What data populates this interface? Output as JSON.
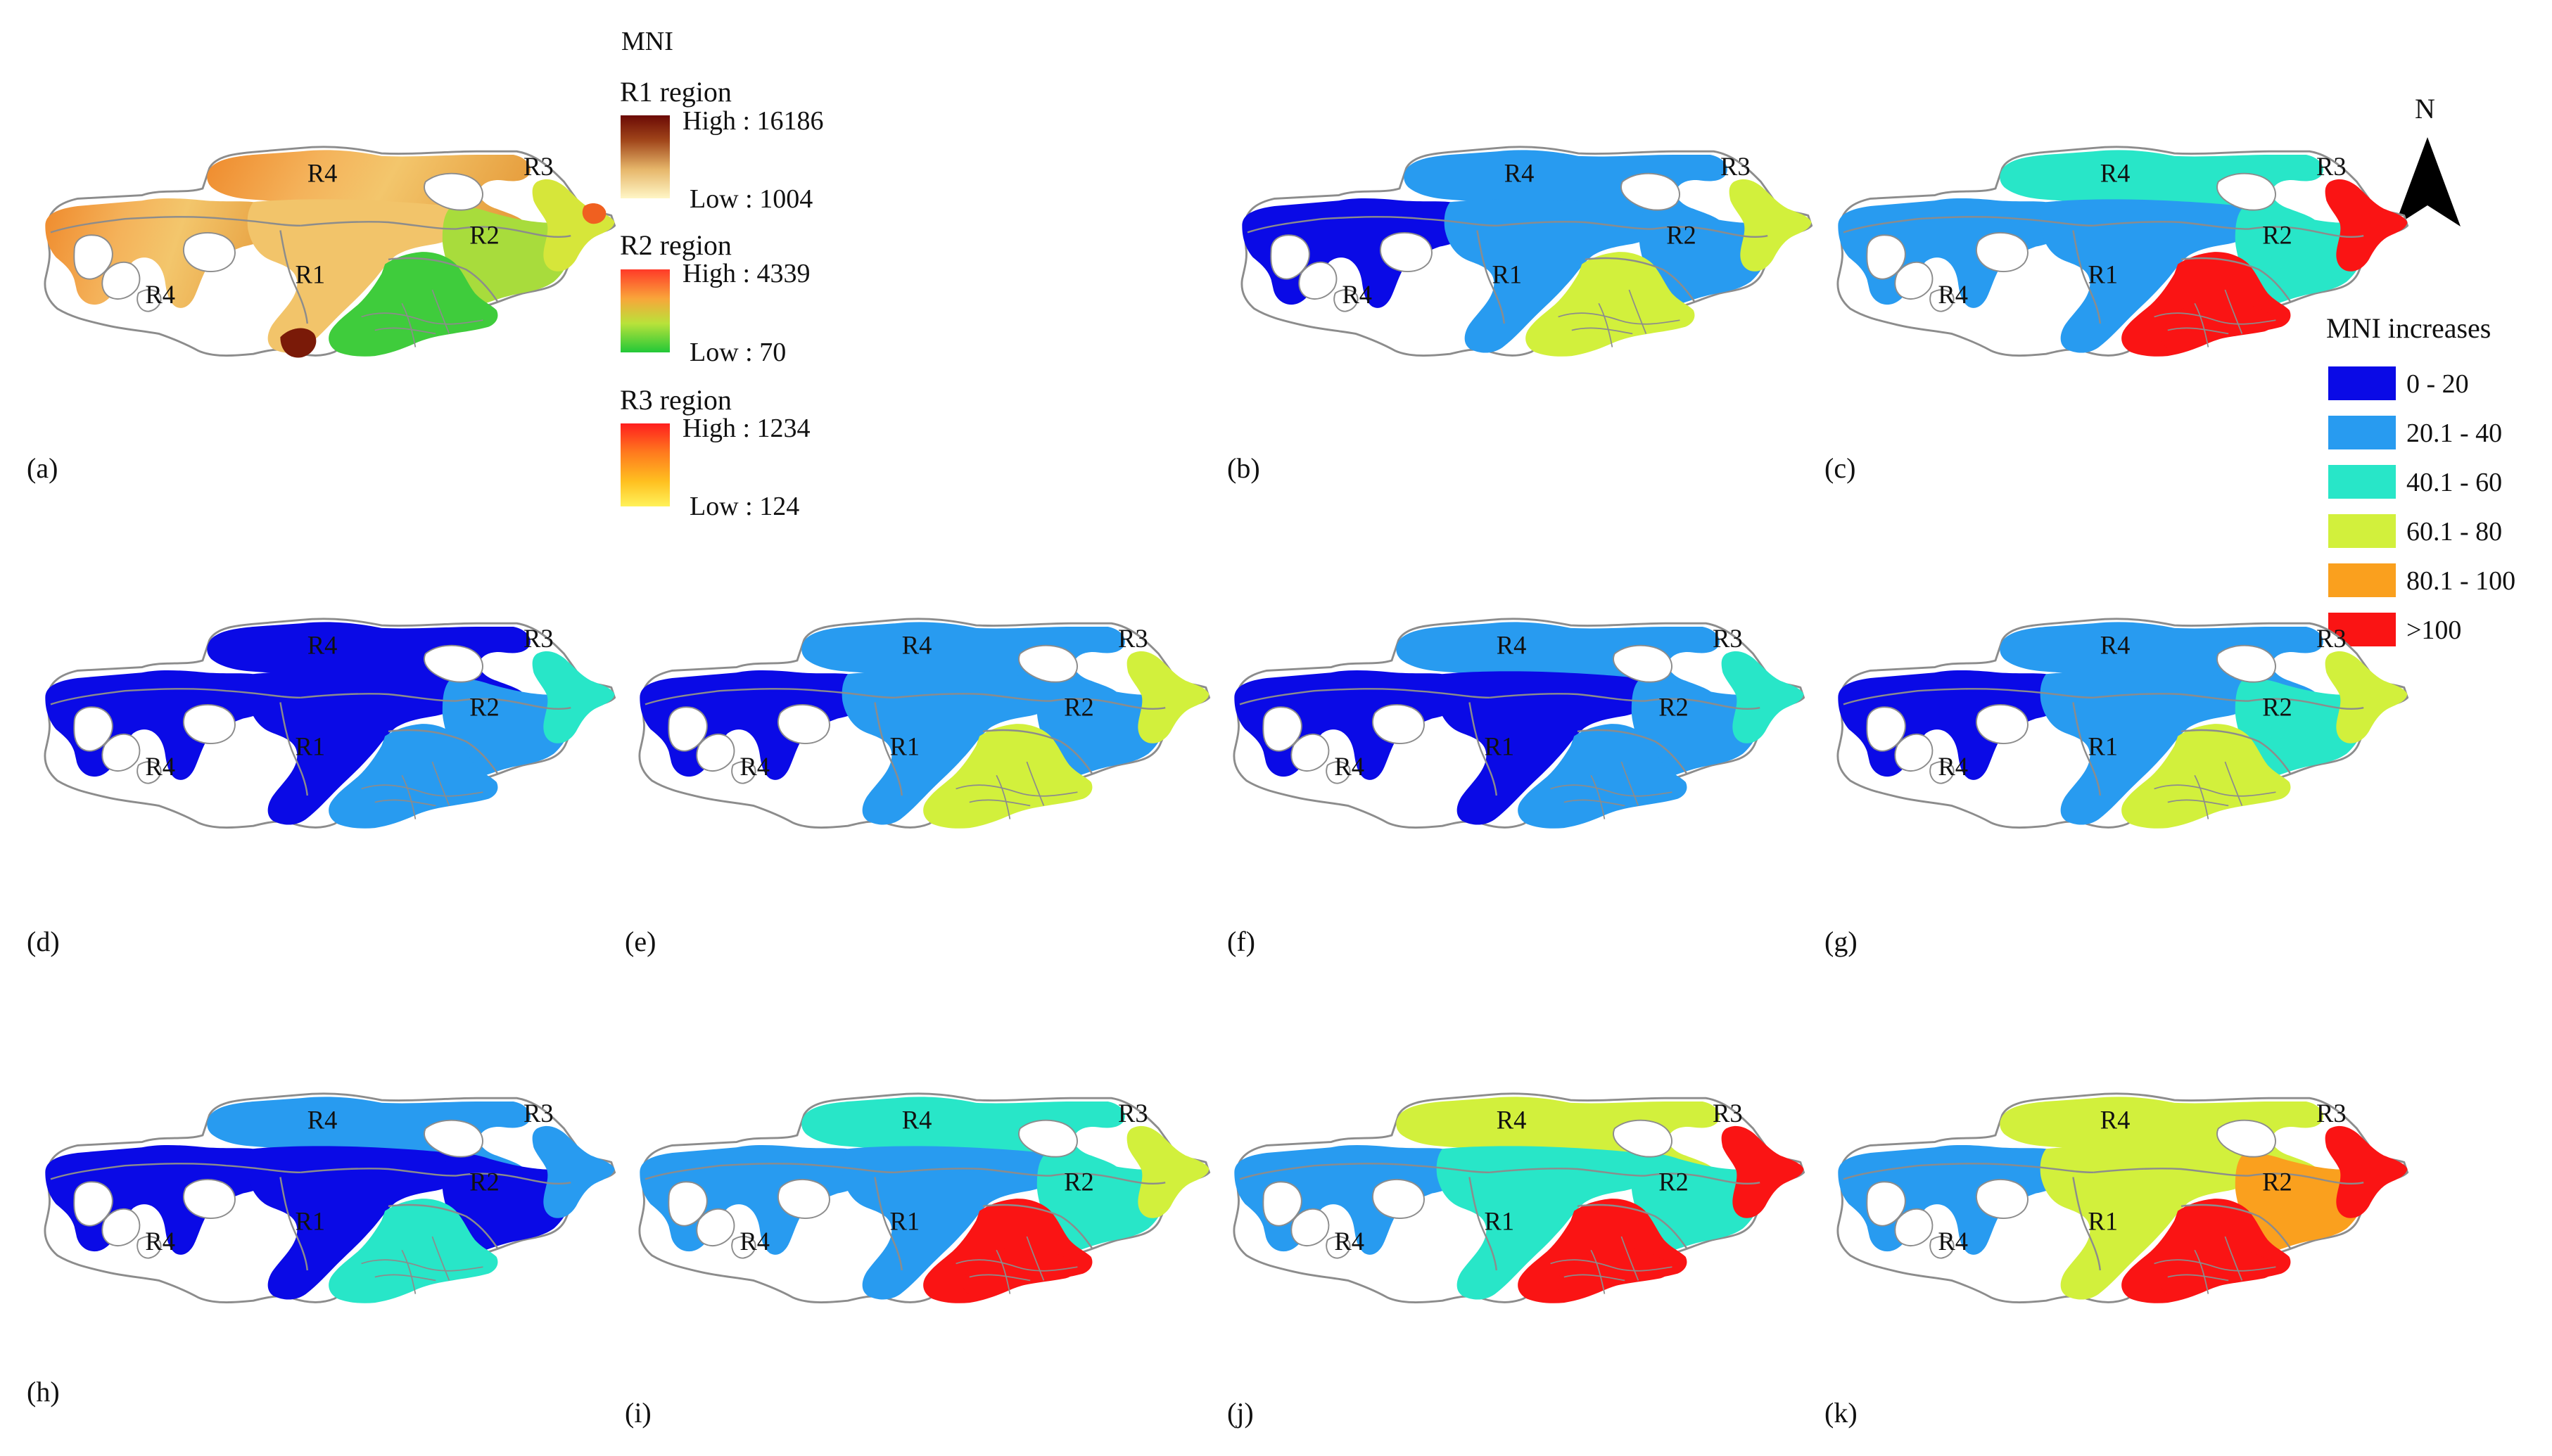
{
  "figure": {
    "panel_a_legend": {
      "title": "MNI",
      "ramps": [
        {
          "name": "R1 region",
          "high": "High : 16186",
          "low": "Low : 1004",
          "colors": [
            "#6b0a05",
            "#a0451a",
            "#e6b66a",
            "#fff6c6"
          ]
        },
        {
          "name": "R2 region",
          "high": "High : 4339",
          "low": "Low : 70",
          "colors": [
            "#ff3a28",
            "#f9a53a",
            "#b9e23a",
            "#22c838"
          ]
        },
        {
          "name": "R3 region",
          "high": "High : 1234",
          "low": "Low : 124",
          "colors": [
            "#ff1e1e",
            "#ff7a1e",
            "#ffc020",
            "#fff25a"
          ]
        }
      ]
    },
    "north_arrow": {
      "label": "N"
    },
    "increase_legend": {
      "title": "MNI increases",
      "classes": [
        {
          "label": "0 - 20",
          "color": "#0a0ae6"
        },
        {
          "label": "20.1 - 40",
          "color": "#289bf0"
        },
        {
          "label": "40.1 - 60",
          "color": "#28e6c8"
        },
        {
          "label": "60.1 - 80",
          "color": "#d2f03c"
        },
        {
          "label": "80.1 - 100",
          "color": "#faa01e"
        },
        {
          "label": ">100",
          "color": "#fa1414"
        }
      ]
    },
    "region_names": [
      "R1",
      "R2",
      "R3",
      "R4"
    ],
    "outline_color": "#8c8c8c",
    "panels": [
      {
        "id": "a",
        "label": "(a)",
        "mode": "mni"
      },
      {
        "id": "b",
        "label": "(b)",
        "colors": {
          "west": 0,
          "core": 1,
          "upper": 1,
          "east": 1,
          "se": 3,
          "ne": 3
        }
      },
      {
        "id": "c",
        "label": "(c)",
        "colors": {
          "west": 1,
          "core": 1,
          "upper": 2,
          "east": 2,
          "se": 5,
          "ne": 5
        }
      },
      {
        "id": "d",
        "label": "(d)",
        "colors": {
          "west": 0,
          "core": 0,
          "upper": 0,
          "east": 1,
          "se": 1,
          "ne": 2
        }
      },
      {
        "id": "e",
        "label": "(e)",
        "colors": {
          "west": 0,
          "core": 1,
          "upper": 1,
          "east": 1,
          "se": 3,
          "ne": 3
        }
      },
      {
        "id": "f",
        "label": "(f)",
        "colors": {
          "west": 0,
          "core": 0,
          "upper": 1,
          "east": 1,
          "se": 1,
          "ne": 2
        }
      },
      {
        "id": "g",
        "label": "(g)",
        "colors": {
          "west": 0,
          "core": 1,
          "upper": 1,
          "east": 2,
          "se": 3,
          "ne": 3
        }
      },
      {
        "id": "h",
        "label": "(h)",
        "colors": {
          "west": 0,
          "core": 0,
          "upper": 1,
          "east": 0,
          "se": 2,
          "ne": 1
        }
      },
      {
        "id": "i",
        "label": "(i)",
        "colors": {
          "west": 1,
          "core": 1,
          "upper": 2,
          "east": 2,
          "se": 5,
          "ne": 3
        }
      },
      {
        "id": "j",
        "label": "(j)",
        "colors": {
          "west": 1,
          "core": 2,
          "upper": 3,
          "east": 2,
          "se": 5,
          "ne": 5
        }
      },
      {
        "id": "k",
        "label": "(k)",
        "colors": {
          "west": 1,
          "core": 3,
          "upper": 3,
          "east": 4,
          "se": 5,
          "ne": 5
        }
      }
    ]
  }
}
